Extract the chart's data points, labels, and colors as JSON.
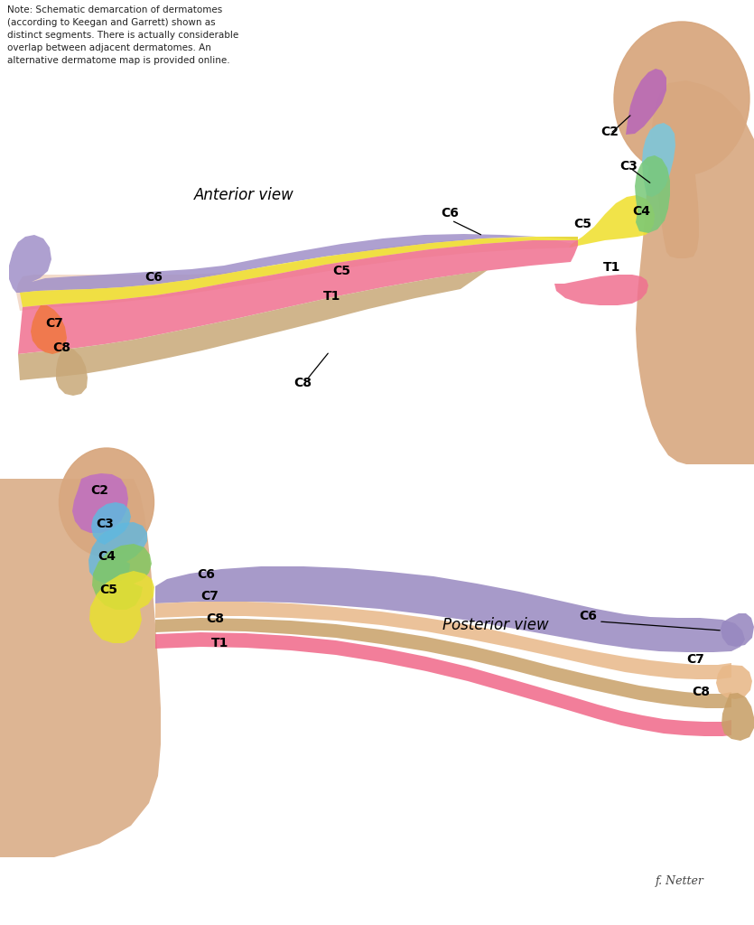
{
  "note_text": "Note: Schematic demarcation of dermatomes\n(according to Keegan and Garrett) shown as\ndistinct segments. There is actually considerable\noverlap between adjacent dermatomes. An\nalternative dermatome map is provided online.",
  "anterior_view_label": "Anterior view",
  "posterior_view_label": "Posterior view",
  "signature": "f. Netter",
  "colors": {
    "C2_ant": "#b868b8",
    "C3_ant": "#78c8e0",
    "C4_ant": "#78c878",
    "C5_ant": "#f0e030",
    "C6_ant": "#a090c8",
    "T1_ant": "#f07090",
    "C8_ant": "#c8a878",
    "skin_ant": "#e8b898",
    "C2_post": "#c070c0",
    "C3_post": "#60b8e0",
    "C4_post": "#80c860",
    "C5_post": "#e8e030",
    "C6_post": "#9888c0",
    "C7_post": "#e8b888",
    "C8_post": "#c8a068",
    "T1_post": "#f06888",
    "skin_post": "#e8b090",
    "body_skin": "#d8a880"
  },
  "background": "#ffffff",
  "label_fontsize": 10,
  "note_fontsize": 7.5,
  "view_fontsize": 12
}
